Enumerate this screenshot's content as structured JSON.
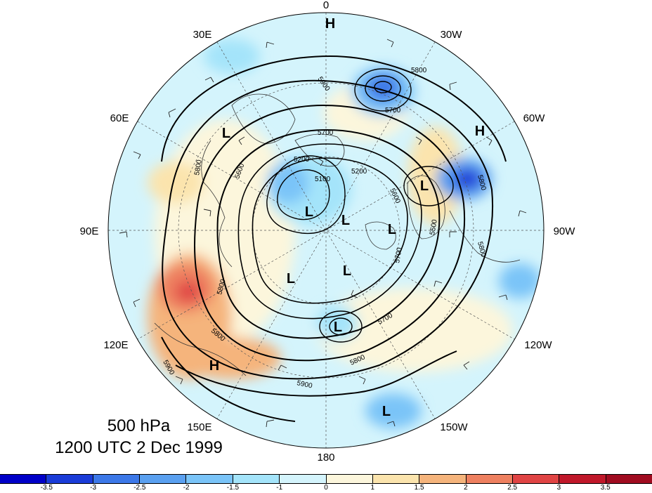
{
  "title": {
    "level": "500 hPa",
    "time": "1200 UTC 2 Dec 1999"
  },
  "longitude_labels": [
    "0",
    "30W",
    "60W",
    "90W",
    "120W",
    "150W",
    "180",
    "150E",
    "120E",
    "90E",
    "60E",
    "30E"
  ],
  "contour_labels": [
    "5900",
    "5800",
    "5700",
    "5700",
    "5600",
    "5800",
    "5200",
    "5100",
    "5200",
    "5800",
    "5600",
    "5500",
    "5800",
    "5700",
    "5800",
    "5900",
    "5800",
    "5700",
    "5900",
    "5800"
  ],
  "pressure_centers": {
    "highs": [
      "H",
      "H",
      "H"
    ],
    "lows": [
      "L",
      "L",
      "L",
      "L",
      "L",
      "L",
      "L",
      "L",
      "L"
    ]
  },
  "colorbar": {
    "colors": [
      "#0000c8",
      "#1a3cd8",
      "#3c78e8",
      "#5aa0f0",
      "#7ac4f8",
      "#a4e4fa",
      "#d4f4fc",
      "#fcf6dc",
      "#fbe4ad",
      "#f5b47c",
      "#ee8060",
      "#e04444",
      "#c0182a",
      "#a00c20"
    ],
    "tick_labels": [
      "-3.5",
      "-3",
      "-2.5",
      "-2",
      "-1.5",
      "-1",
      "0",
      "1",
      "1.5",
      "2",
      "2.5",
      "3",
      "3.5"
    ]
  }
}
